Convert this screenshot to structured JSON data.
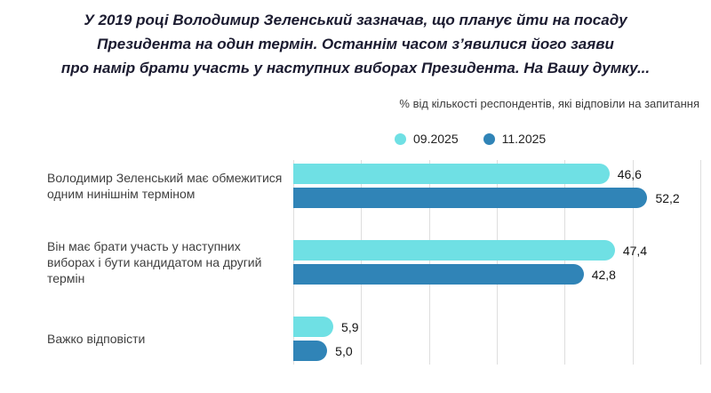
{
  "chart_data": {
    "type": "bar",
    "orientation": "horizontal",
    "title_lines": [
      "У 2019 році Володимир Зеленський зазначав, що планує йти на посаду",
      "Президента на один термін. Останнім часом з’явилися його заяви",
      "про намір брати участь у наступних виборах Президента. На Вашу думку..."
    ],
    "subtitle": "% від кількості респондентів, які відповіли на запитання",
    "categories": [
      "Володимир Зеленський має обмежитися одним нинішнім терміном",
      "Він має брати участь у наступних виборах і бути кандидатом на другий термін",
      "Важко відповісти"
    ],
    "series": [
      {
        "name": "09.2025",
        "color": "#6FE0E4",
        "values": [
          46.6,
          47.4,
          5.9
        ],
        "labels": [
          "46,6",
          "47,4",
          "5,9"
        ]
      },
      {
        "name": "11.2025",
        "color": "#3084B7",
        "values": [
          52.2,
          42.8,
          5.0
        ],
        "labels": [
          "52,2",
          "42,8",
          "5,0"
        ]
      }
    ],
    "xlim": [
      0,
      60
    ],
    "gridline_step": 10,
    "grid": true,
    "legend_position": "top",
    "value_decimal_separator": ","
  },
  "colors": {
    "series_09_2025": "#6FE0E4",
    "series_11_2025": "#3084B7",
    "gridline": "#dedede",
    "title_text": "#1b1b30",
    "category_text": "#3f3f3f",
    "value_text": "#141414"
  }
}
